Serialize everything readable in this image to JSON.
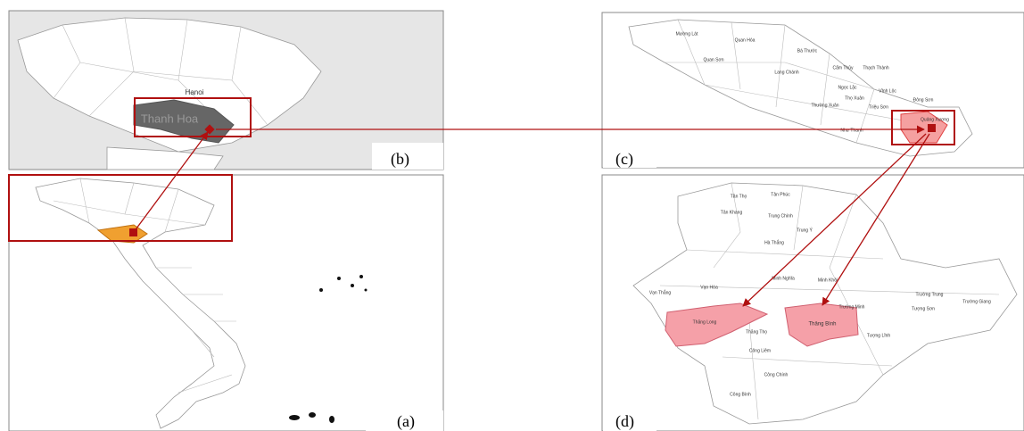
{
  "panels": [
    {
      "label": "(a)"
    },
    {
      "label": "(b)",
      "places": [
        "Hanoi",
        "Thanh Hoa"
      ]
    },
    {
      "label": "(c)",
      "places": [
        "Mường Lát",
        "Quan Hóa",
        "Quan Sơn",
        "Bá Thước",
        "Lang Chánh",
        "Cẩm Thủy",
        "Thạch Thành",
        "Ngọc Lặc",
        "Vĩnh Lộc",
        "Thọ Xuân",
        "Thường Xuân",
        "Triệu Sơn",
        "Đông Sơn",
        "Như Thanh",
        "Quảng Xương"
      ]
    },
    {
      "label": "(d)",
      "places": [
        "Tân Thọ",
        "Tân Phúc",
        "Tân Khang",
        "Trung Chính",
        "Trung Ý",
        "Hà Thắng",
        "Vạn Thắng",
        "Vạn Hòa",
        "Minh Nghĩa",
        "Minh Khôi",
        "Thăng Long",
        "Thăng Bình",
        "Thăng Thọ",
        "Công Liêm",
        "Công Chính",
        "Công Bình",
        "Trường Minh",
        "Tượng Lĩnh",
        "Tượng Sơn",
        "Trường Trung",
        "Trường Giang"
      ]
    }
  ]
}
